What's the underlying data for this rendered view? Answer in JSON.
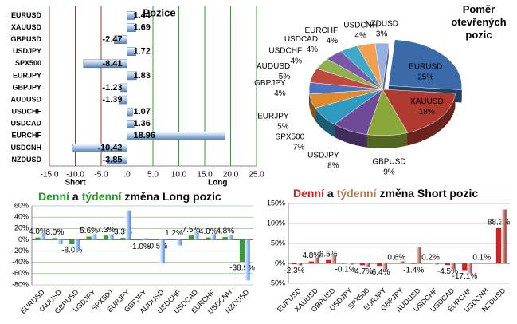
{
  "chart_data": [
    {
      "type": "hbar",
      "title": "Pozice",
      "categories": [
        "EURUSD",
        "XAUUSD",
        "GBPUSD",
        "USDJPY",
        "SPX500",
        "EURJPY",
        "GBPJPY",
        "AUDUSD",
        "USDCHF",
        "USDCAD",
        "EURCHF",
        "USDCNH",
        "NZDUSD"
      ],
      "values": [
        1.44,
        1.69,
        -2.47,
        1.72,
        -8.41,
        1.83,
        -1.23,
        -1.39,
        1.07,
        1.36,
        18.96,
        -10.42,
        -3.85
      ],
      "color": "#4f81bd",
      "xlim": [
        -15,
        25
      ],
      "xticks": [
        {
          "value": -15,
          "label": "-15.0"
        },
        {
          "value": -10,
          "label": "-10.0"
        },
        {
          "value": -5,
          "label": "-5.0"
        },
        {
          "value": 0,
          "label": ".0"
        },
        {
          "value": 5,
          "label": "5.0"
        },
        {
          "value": 10,
          "label": "10.0"
        },
        {
          "value": 15,
          "label": "15.0"
        },
        {
          "value": 20,
          "label": "20.0"
        },
        {
          "value": 25,
          "label": "25.0"
        }
      ],
      "annotations": [
        "Short",
        "Long"
      ],
      "grid": true
    },
    {
      "type": "pie",
      "title": "Poměr otevřených pozic",
      "categories": [
        "EURUSD",
        "XAUUSD",
        "GBPUSD",
        "USDJPY",
        "SPX500",
        "EURJPY",
        "GBPJPY",
        "AUDUSD",
        "USDCHF",
        "USDCAD",
        "EURCHF",
        "USDCNH",
        "NZDUSD"
      ],
      "values": [
        25,
        18,
        9,
        8,
        7,
        5,
        4,
        5,
        4,
        4,
        4,
        4,
        3
      ],
      "value_labels": [
        "25%",
        "18%",
        "9%",
        "8%",
        "7%",
        "5%",
        "4%",
        "5%",
        "4%",
        "4%",
        "4%",
        "4%",
        "3%"
      ],
      "colors": [
        "#3a6aa8",
        "#b03a30",
        "#8aa83a",
        "#6e4a98",
        "#2e9ac0",
        "#e08a2e",
        "#4a74c0",
        "#c04a40",
        "#90b050",
        "#7a5aa8",
        "#40a8c8",
        "#f0a050",
        "#98b0e0"
      ]
    },
    {
      "type": "bar",
      "title": [
        "Denní",
        "a",
        "týdenní",
        "změna Long pozic"
      ],
      "title_colors": [
        "#2a9a2a",
        "#000000",
        "#2a9a2a",
        "#000000"
      ],
      "categories": [
        "EURUSD",
        "XAUUSD",
        "GBPUSD",
        "USDJPY",
        "SPX500",
        "EURJPY",
        "GBPJPY",
        "AUDUSD",
        "USDCHF",
        "USDCAD",
        "EURCHF",
        "USDCNH",
        "NZDUSD"
      ],
      "series": [
        {
          "color": "#3a9a3a",
          "values": [
            4.0,
            3.0,
            -8.0,
            5.6,
            7.3,
            3.3,
            -1.0,
            -0.5,
            1.2,
            7.5,
            4.0,
            4.8,
            -38.9
          ],
          "value_labels": [
            "4.0%",
            "3.0%",
            "-8.0%",
            "5.6%",
            "7.3%",
            "3.3%",
            "-1.0%",
            "-0.5%",
            "1.2%",
            "7.5%",
            "4.0%",
            "4.8%",
            "-38.9%"
          ]
        },
        {
          "color": "#4a8ae0",
          "values": [
            12,
            -8,
            -20,
            10,
            10,
            52,
            3,
            -42,
            -10,
            15,
            10,
            8,
            -72
          ]
        }
      ],
      "ylim": [
        -80,
        60
      ],
      "yticks": [
        {
          "value": -80,
          "label": "-80%"
        },
        {
          "value": -60,
          "label": "-60%"
        },
        {
          "value": -40,
          "label": "-40%"
        },
        {
          "value": -20,
          "label": "-20%"
        },
        {
          "value": 0,
          "label": "0%"
        },
        {
          "value": 20,
          "label": "20%"
        },
        {
          "value": 40,
          "label": "40%"
        },
        {
          "value": 60,
          "label": "60%"
        }
      ],
      "grid_color": "#3a9a3a"
    },
    {
      "type": "bar",
      "title": [
        "Denní",
        "a",
        "týdenní",
        "změna Short pozic"
      ],
      "title_colors": [
        "#d02020",
        "#000000",
        "#b07a50",
        "#000000"
      ],
      "categories": [
        "EURUSD",
        "XAUUSD",
        "GBPUSD",
        "USDJPY",
        "SPX500",
        "EURJPY",
        "GBPJPY",
        "AUDUSD",
        "USDCHF",
        "USDCAD",
        "EURCHF",
        "USDCNH",
        "NZDUSD"
      ],
      "series": [
        {
          "color": "#d02020",
          "values": [
            -2.3,
            4.8,
            8.5,
            -0.1,
            -4.7,
            -6.4,
            0.6,
            -1.4,
            0.2,
            -4.5,
            -17.1,
            0.1,
            88.3
          ],
          "value_labels": [
            "-2.3%",
            "4.8%",
            "8.5%",
            "-0.1%",
            "-4.7%",
            "-6.4%",
            "0.6%",
            "-1.4%",
            "0.2%",
            "-4.5%",
            "-17.1%",
            "0.1%",
            "88.3%"
          ]
        },
        {
          "color": "#8a2a1a",
          "values": [
            -5,
            15,
            20,
            -3,
            -8,
            -15,
            5,
            40,
            -3,
            -15,
            -25,
            0,
            135
          ]
        }
      ],
      "ylim": [
        -50,
        150
      ],
      "yticks": [
        {
          "value": -50,
          "label": "-50%"
        },
        {
          "value": 0,
          "label": "0%"
        },
        {
          "value": 50,
          "label": "50%"
        },
        {
          "value": 100,
          "label": "100%"
        },
        {
          "value": 150,
          "label": "150%"
        }
      ],
      "grid_color": "#c03030"
    }
  ]
}
